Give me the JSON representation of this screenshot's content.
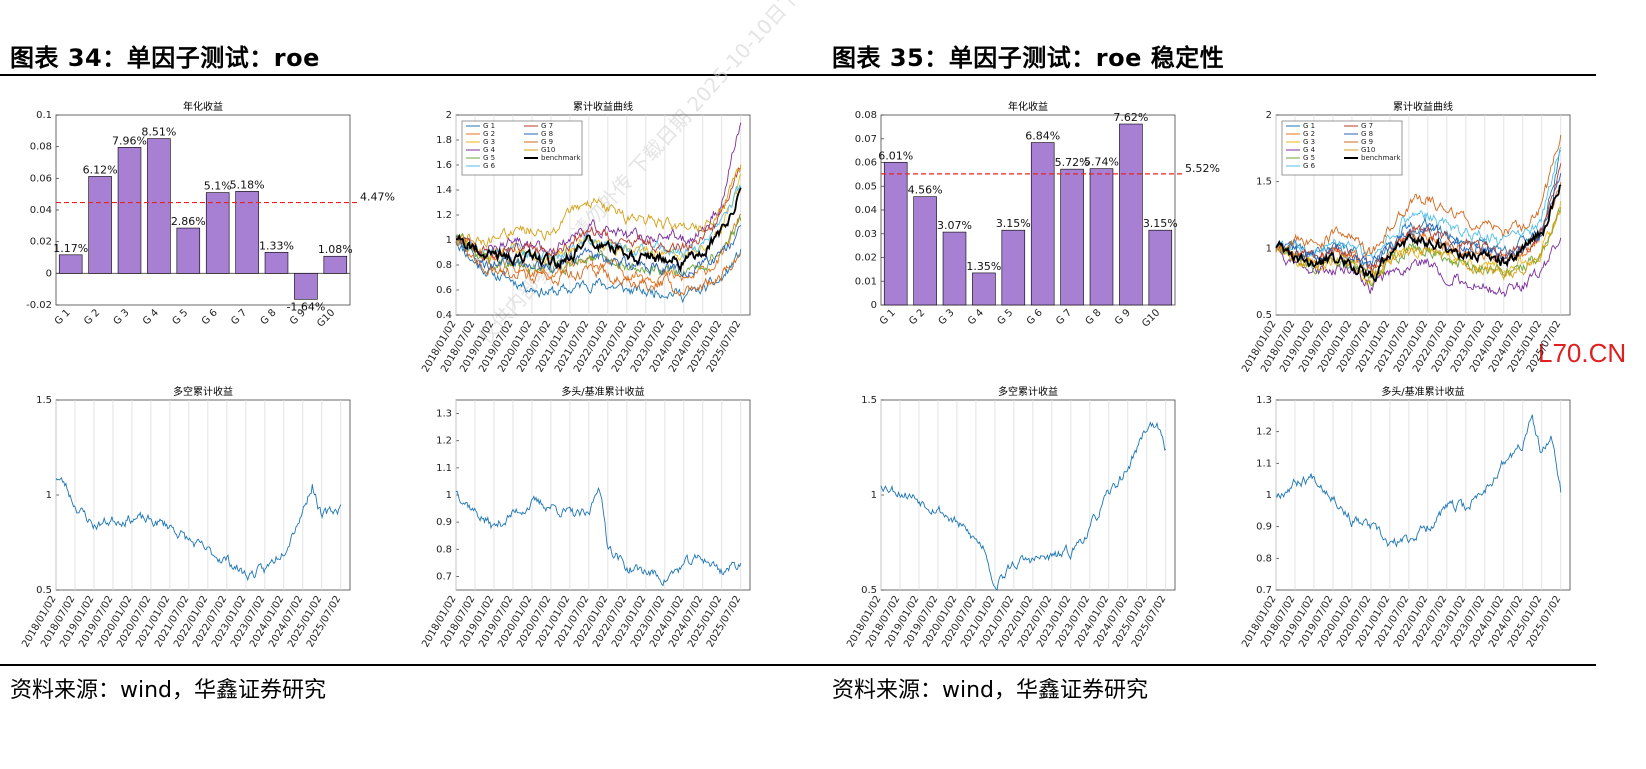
{
  "left": {
    "title": "图表 34：单因子测试：roe",
    "source": "资料来源：wind，华鑫证券研究"
  },
  "right": {
    "title": "图表 35：单因子测试：roe 稳定性",
    "source": "资料来源：wind，华鑫证券研究"
  },
  "watermark": "仅供内部参考，请勿外传 下载日期 2025-10-10日下载，仅",
  "site_mark": "L70.CN",
  "colors": {
    "bar": "#a77fd3",
    "bar_border": "#000000",
    "mean_line": "#e32626",
    "line": "#1f77b4",
    "benchmark": "#000000"
  },
  "chart_data": [
    {
      "id": "bar34",
      "type": "bar",
      "title": "年化收益",
      "categories": [
        "G 1",
        "G 2",
        "G 3",
        "G 4",
        "G 5",
        "G 6",
        "G 7",
        "G 8",
        "G 9",
        "G10"
      ],
      "values": [
        0.0117,
        0.0612,
        0.0796,
        0.0851,
        0.0286,
        0.051,
        0.0518,
        0.0133,
        -0.0164,
        0.0108
      ],
      "value_labels": [
        "1.17%",
        "6.12%",
        "7.96%",
        "8.51%",
        "2.86%",
        "5.1%",
        "5.18%",
        "1.33%",
        "-1.64%",
        "1.08%"
      ],
      "mean": 0.0447,
      "mean_label": "4.47%",
      "ylim": [
        -0.02,
        0.1
      ],
      "yticks": [
        -0.02,
        0,
        0.02,
        0.04,
        0.06,
        0.08,
        0.1
      ],
      "ytick_labels": [
        "-0.02",
        "0",
        "0.02",
        "0.04",
        "0.06",
        "0.08",
        "0.1"
      ]
    },
    {
      "id": "cum34",
      "type": "line",
      "title": "累计收益曲线",
      "ylim": [
        0.4,
        2
      ],
      "yticks": [
        0.4,
        0.6,
        0.8,
        1,
        1.2,
        1.4,
        1.6,
        1.8,
        2
      ],
      "ytick_labels": [
        "0.4",
        "0.6",
        "0.8",
        "1",
        "1.2",
        "1.4",
        "1.6",
        "1.8",
        "2"
      ],
      "xtick_labels": [
        "2018/01/02",
        "2018/07/02",
        "2019/01/02",
        "2019/07/02",
        "2020/01/02",
        "2020/07/02",
        "2021/01/02",
        "2021/07/02",
        "2022/01/02",
        "2022/07/02",
        "2023/01/02",
        "2023/07/02",
        "2024/01/02",
        "2024/07/02",
        "2025/01/02",
        "2025/07/02"
      ],
      "legend": [
        "G 1",
        "G 2",
        "G 3",
        "G 4",
        "G 5",
        "G 6",
        "G 7",
        "G 8",
        "G 9",
        "G10",
        "benchmark"
      ],
      "series_colors": [
        "#1f77b4",
        "#e8731a",
        "#eab71a",
        "#7b2f9e",
        "#6ba53a",
        "#52bfe8",
        "#b83a2a",
        "#2a63b8",
        "#d2691e",
        "#d4a017",
        "#000000"
      ],
      "x": [
        "2018/01/02",
        "2018/07/02",
        "2019/01/02",
        "2019/07/02",
        "2020/01/02",
        "2020/07/02",
        "2021/01/02",
        "2021/07/02",
        "2022/01/02",
        "2022/07/02",
        "2023/01/02",
        "2023/07/02",
        "2024/01/02",
        "2024/07/02",
        "2025/01/02",
        "2025/07/02"
      ],
      "series": [
        {
          "name": "G 1",
          "values": [
            1.0,
            0.82,
            0.72,
            0.68,
            0.62,
            0.58,
            0.6,
            0.66,
            0.64,
            0.6,
            0.58,
            0.6,
            0.56,
            0.6,
            0.68,
            0.9
          ]
        },
        {
          "name": "G 2",
          "values": [
            1.0,
            0.88,
            0.8,
            0.8,
            0.76,
            0.72,
            0.78,
            0.82,
            0.8,
            0.74,
            0.72,
            0.72,
            0.68,
            0.74,
            0.86,
            1.2
          ]
        },
        {
          "name": "G 3",
          "values": [
            1.0,
            0.9,
            0.86,
            0.9,
            0.86,
            0.84,
            0.92,
            0.98,
            0.96,
            0.9,
            0.9,
            0.9,
            0.86,
            0.92,
            1.1,
            1.5
          ]
        },
        {
          "name": "G 4",
          "values": [
            1.0,
            0.96,
            0.92,
            0.98,
            0.96,
            0.92,
            1.02,
            1.1,
            1.08,
            1.02,
            1.02,
            1.04,
            1.0,
            1.08,
            1.3,
            1.95
          ]
        },
        {
          "name": "G 5",
          "values": [
            1.0,
            0.9,
            0.82,
            0.84,
            0.8,
            0.76,
            0.8,
            0.86,
            0.84,
            0.78,
            0.76,
            0.78,
            0.74,
            0.8,
            0.92,
            1.15
          ]
        },
        {
          "name": "G 6",
          "values": [
            1.0,
            0.92,
            0.88,
            0.92,
            0.9,
            0.86,
            0.94,
            1.0,
            0.98,
            0.92,
            0.9,
            0.92,
            0.9,
            0.96,
            1.12,
            1.45
          ]
        },
        {
          "name": "G 7",
          "values": [
            1.0,
            0.94,
            0.9,
            0.94,
            0.92,
            0.9,
            0.98,
            1.04,
            1.02,
            0.98,
            0.96,
            0.98,
            0.94,
            1.02,
            1.2,
            1.6
          ]
        },
        {
          "name": "G 8",
          "values": [
            1.0,
            0.86,
            0.8,
            0.82,
            0.8,
            0.76,
            0.82,
            0.88,
            0.86,
            0.8,
            0.78,
            0.8,
            0.74,
            0.78,
            0.88,
            1.1
          ]
        },
        {
          "name": "G 9",
          "values": [
            1.0,
            0.84,
            0.76,
            0.74,
            0.7,
            0.66,
            0.7,
            0.74,
            0.72,
            0.66,
            0.64,
            0.66,
            0.6,
            0.64,
            0.72,
            0.85
          ]
        },
        {
          "name": "G10",
          "values": [
            1.0,
            1.0,
            0.98,
            1.06,
            1.08,
            1.06,
            1.2,
            1.3,
            1.26,
            1.18,
            1.16,
            1.14,
            1.08,
            1.1,
            1.25,
            1.6
          ]
        },
        {
          "name": "benchmark",
          "values": [
            1.0,
            0.94,
            0.86,
            0.88,
            0.84,
            0.8,
            0.9,
            0.98,
            0.96,
            0.88,
            0.86,
            0.86,
            0.82,
            0.9,
            1.06,
            1.4
          ]
        }
      ]
    },
    {
      "id": "ls34",
      "type": "line",
      "title": "多空累计收益",
      "ylim": [
        0.5,
        1.5
      ],
      "yticks": [
        0.5,
        1,
        1.5
      ],
      "ytick_labels": [
        "0.5",
        "1",
        "1.5"
      ],
      "xtick_labels": [
        "2018/01/02",
        "2018/07/02",
        "2019/01/02",
        "2019/07/02",
        "2020/01/02",
        "2020/07/02",
        "2021/01/02",
        "2021/07/02",
        "2022/01/02",
        "2022/07/02",
        "2023/01/02",
        "2023/07/02",
        "2024/01/02",
        "2024/07/02",
        "2025/01/02",
        "2025/07/02"
      ],
      "x": [
        "2018/01/02",
        "2018/04/02",
        "2018/07/02",
        "2019/01/02",
        "2019/07/02",
        "2020/01/02",
        "2020/07/02",
        "2021/01/02",
        "2021/07/02",
        "2022/01/02",
        "2022/07/02",
        "2023/01/02",
        "2023/07/02",
        "2024/01/02",
        "2024/07/02",
        "2024/10/02",
        "2025/01/02",
        "2025/07/02"
      ],
      "series": [
        {
          "name": "",
          "values": [
            1.1,
            1.05,
            0.95,
            0.84,
            0.87,
            0.88,
            0.86,
            0.84,
            0.76,
            0.7,
            0.66,
            0.58,
            0.6,
            0.72,
            0.92,
            1.06,
            0.88,
            0.94
          ]
        }
      ]
    },
    {
      "id": "lb34",
      "type": "line",
      "title": "多头/基准累计收益",
      "ylim": [
        0.65,
        1.35
      ],
      "yticks": [
        0.7,
        0.8,
        0.9,
        1,
        1.1,
        1.2,
        1.3
      ],
      "ytick_labels": [
        "0.7",
        "0.8",
        "0.9",
        "1",
        "1.1",
        "1.2",
        "1.3"
      ],
      "xtick_labels": [
        "2018/01/02",
        "2018/07/02",
        "2019/01/02",
        "2019/07/02",
        "2020/01/02",
        "2020/07/02",
        "2021/01/02",
        "2021/07/02",
        "2022/01/02",
        "2022/07/02",
        "2023/01/02",
        "2023/07/02",
        "2024/01/02",
        "2024/07/02",
        "2025/01/02",
        "2025/07/02"
      ],
      "x": [
        "2018/01/02",
        "2018/07/02",
        "2019/01/02",
        "2019/07/02",
        "2020/01/02",
        "2020/07/02",
        "2021/01/02",
        "2021/07/02",
        "2021/10/02",
        "2022/01/02",
        "2022/07/02",
        "2023/01/02",
        "2023/07/02",
        "2024/01/02",
        "2024/07/02",
        "2025/01/02",
        "2025/07/02"
      ],
      "series": [
        {
          "name": "",
          "values": [
            1.02,
            0.94,
            0.88,
            0.93,
            0.97,
            0.96,
            0.93,
            0.92,
            1.05,
            0.82,
            0.73,
            0.72,
            0.69,
            0.74,
            0.77,
            0.72,
            0.75
          ]
        }
      ]
    },
    {
      "id": "bar35",
      "type": "bar",
      "title": "年化收益",
      "categories": [
        "G 1",
        "G 2",
        "G 3",
        "G 4",
        "G 5",
        "G 6",
        "G 7",
        "G 8",
        "G 9",
        "G10"
      ],
      "values": [
        0.0601,
        0.0456,
        0.0307,
        0.0135,
        0.0315,
        0.0684,
        0.0572,
        0.0574,
        0.0762,
        0.0315
      ],
      "value_labels": [
        "6.01%",
        "4.56%",
        "3.07%",
        "1.35%",
        "3.15%",
        "6.84%",
        "5.72%",
        "5.74%",
        "7.62%",
        "3.15%"
      ],
      "mean": 0.0552,
      "mean_label": "5.52%",
      "ylim": [
        0,
        0.08
      ],
      "yticks": [
        0,
        0.01,
        0.02,
        0.03,
        0.04,
        0.05,
        0.06,
        0.07,
        0.08
      ],
      "ytick_labels": [
        "0",
        "0.01",
        "0.02",
        "0.03",
        "0.04",
        "0.05",
        "0.06",
        "0.07",
        "0.08"
      ]
    },
    {
      "id": "cum35",
      "type": "line",
      "title": "累计收益曲线",
      "ylim": [
        0.5,
        2
      ],
      "yticks": [
        0.5,
        1,
        1.5,
        2
      ],
      "ytick_labels": [
        "0.5",
        "1",
        "1.5",
        "2"
      ],
      "xtick_labels": [
        "2018/01/02",
        "2018/07/02",
        "2019/01/02",
        "2019/07/02",
        "2020/01/02",
        "2020/07/02",
        "2021/01/02",
        "2021/07/02",
        "2022/01/02",
        "2022/07/02",
        "2023/01/02",
        "2023/07/02",
        "2024/01/02",
        "2024/07/02",
        "2025/01/02",
        "2025/07/02"
      ],
      "legend": [
        "G 1",
        "G 2",
        "G 3",
        "G 4",
        "G 5",
        "G 6",
        "G 7",
        "G 8",
        "G 9",
        "G10",
        "benchmark"
      ],
      "series_colors": [
        "#1f77b4",
        "#e8731a",
        "#eab71a",
        "#7b2f9e",
        "#6ba53a",
        "#52bfe8",
        "#b83a2a",
        "#2a63b8",
        "#d2691e",
        "#d4a017",
        "#000000"
      ],
      "x": [
        "2018/01/02",
        "2018/07/02",
        "2019/01/02",
        "2019/07/02",
        "2020/01/02",
        "2020/07/02",
        "2021/01/02",
        "2021/07/02",
        "2022/01/02",
        "2022/07/02",
        "2023/01/02",
        "2023/07/02",
        "2024/01/02",
        "2024/07/02",
        "2025/01/02",
        "2025/07/02"
      ],
      "series": [
        {
          "name": "G 1",
          "values": [
            1.0,
            1.0,
            0.96,
            1.0,
            0.98,
            0.86,
            1.02,
            1.16,
            1.18,
            1.1,
            1.06,
            1.04,
            0.98,
            1.04,
            1.16,
            1.7
          ]
        },
        {
          "name": "G 2",
          "values": [
            1.0,
            0.96,
            0.92,
            0.96,
            0.94,
            0.82,
            0.98,
            1.08,
            1.1,
            1.02,
            0.98,
            0.96,
            0.9,
            0.96,
            1.08,
            1.5
          ]
        },
        {
          "name": "G 3",
          "values": [
            1.0,
            0.92,
            0.88,
            0.9,
            0.88,
            0.74,
            0.9,
            0.98,
            1.0,
            0.92,
            0.88,
            0.86,
            0.82,
            0.88,
            0.98,
            1.35
          ]
        },
        {
          "name": "G 4",
          "values": [
            1.0,
            0.88,
            0.82,
            0.84,
            0.82,
            0.7,
            0.82,
            0.88,
            0.9,
            0.8,
            0.74,
            0.72,
            0.66,
            0.72,
            0.82,
            1.1
          ]
        },
        {
          "name": "G 5",
          "values": [
            1.0,
            0.92,
            0.86,
            0.9,
            0.88,
            0.76,
            0.9,
            0.98,
            1.0,
            0.92,
            0.88,
            0.86,
            0.8,
            0.86,
            0.96,
            1.3
          ]
        },
        {
          "name": "G 6",
          "values": [
            1.0,
            1.02,
            0.98,
            1.04,
            1.02,
            0.9,
            1.08,
            1.24,
            1.26,
            1.16,
            1.12,
            1.1,
            1.04,
            1.08,
            1.2,
            1.8
          ]
        },
        {
          "name": "G 7",
          "values": [
            1.0,
            0.98,
            0.94,
            0.98,
            0.96,
            0.84,
            1.0,
            1.12,
            1.14,
            1.06,
            1.02,
            1.0,
            0.94,
            1.0,
            1.12,
            1.6
          ]
        },
        {
          "name": "G 8",
          "values": [
            1.0,
            0.98,
            0.94,
            0.98,
            0.96,
            0.84,
            1.0,
            1.12,
            1.14,
            1.06,
            1.02,
            1.0,
            0.94,
            1.0,
            1.12,
            1.6
          ]
        },
        {
          "name": "G 9",
          "values": [
            1.0,
            1.06,
            1.02,
            1.1,
            1.08,
            0.96,
            1.16,
            1.34,
            1.38,
            1.28,
            1.22,
            1.2,
            1.12,
            1.16,
            1.3,
            1.85
          ]
        },
        {
          "name": "G10",
          "values": [
            1.0,
            0.92,
            0.86,
            0.9,
            0.88,
            0.76,
            0.9,
            0.98,
            1.0,
            0.92,
            0.88,
            0.86,
            0.8,
            0.86,
            0.96,
            1.3
          ]
        },
        {
          "name": "benchmark",
          "values": [
            1.0,
            0.94,
            0.88,
            0.9,
            0.88,
            0.78,
            0.94,
            1.04,
            1.06,
            0.98,
            0.96,
            0.94,
            0.9,
            0.98,
            1.1,
            1.5
          ]
        }
      ]
    },
    {
      "id": "ls35",
      "type": "line",
      "title": "多空累计收益",
      "ylim": [
        0.5,
        1.5
      ],
      "yticks": [
        0.5,
        1,
        1.5
      ],
      "ytick_labels": [
        "0.5",
        "1",
        "1.5"
      ],
      "xtick_labels": [
        "2018/01/02",
        "2018/07/02",
        "2019/01/02",
        "2019/07/02",
        "2020/01/02",
        "2020/07/02",
        "2021/01/02",
        "2021/07/02",
        "2022/01/02",
        "2022/07/02",
        "2023/01/02",
        "2023/07/02",
        "2024/01/02",
        "2024/07/02",
        "2025/01/02",
        "2025/07/02"
      ],
      "x": [
        "2018/01/02",
        "2018/07/02",
        "2019/01/02",
        "2019/07/02",
        "2020/01/02",
        "2020/07/02",
        "2020/10/02",
        "2021/01/02",
        "2021/07/02",
        "2022/01/02",
        "2022/07/02",
        "2023/01/02",
        "2023/07/02",
        "2024/01/02",
        "2024/07/02",
        "2025/01/02",
        "2025/04/02",
        "2025/07/02"
      ],
      "series": [
        {
          "name": "",
          "values": [
            1.06,
            1.02,
            0.98,
            0.93,
            0.85,
            0.76,
            0.72,
            0.52,
            0.64,
            0.66,
            0.67,
            0.7,
            0.82,
            1.0,
            1.14,
            1.36,
            1.38,
            1.22
          ]
        }
      ]
    },
    {
      "id": "lb35",
      "type": "line",
      "title": "多头/基准累计收益",
      "ylim": [
        0.7,
        1.3
      ],
      "yticks": [
        0.7,
        0.8,
        0.9,
        1,
        1.1,
        1.2,
        1.3
      ],
      "ytick_labels": [
        "0.7",
        "0.8",
        "0.9",
        "1",
        "1.1",
        "1.2",
        "1.3"
      ],
      "xtick_labels": [
        "2018/01/02",
        "2018/07/02",
        "2019/01/02",
        "2019/07/02",
        "2020/01/02",
        "2020/07/02",
        "2021/01/02",
        "2021/07/02",
        "2022/01/02",
        "2022/07/02",
        "2023/01/02",
        "2023/07/02",
        "2024/01/02",
        "2024/07/02",
        "2025/01/02",
        "2025/07/02"
      ],
      "x": [
        "2018/01/02",
        "2018/07/02",
        "2019/01/02",
        "2019/07/02",
        "2020/01/02",
        "2020/07/02",
        "2021/01/02",
        "2021/07/02",
        "2022/01/02",
        "2022/07/02",
        "2023/01/02",
        "2023/07/02",
        "2024/01/02",
        "2024/07/02",
        "2024/10/02",
        "2025/01/02",
        "2025/04/02",
        "2025/07/02"
      ],
      "series": [
        {
          "name": "",
          "values": [
            1.0,
            1.04,
            1.06,
            1.0,
            0.92,
            0.9,
            0.84,
            0.86,
            0.9,
            0.96,
            0.96,
            1.02,
            1.1,
            1.16,
            1.24,
            1.12,
            1.18,
            1.02
          ]
        }
      ]
    }
  ]
}
